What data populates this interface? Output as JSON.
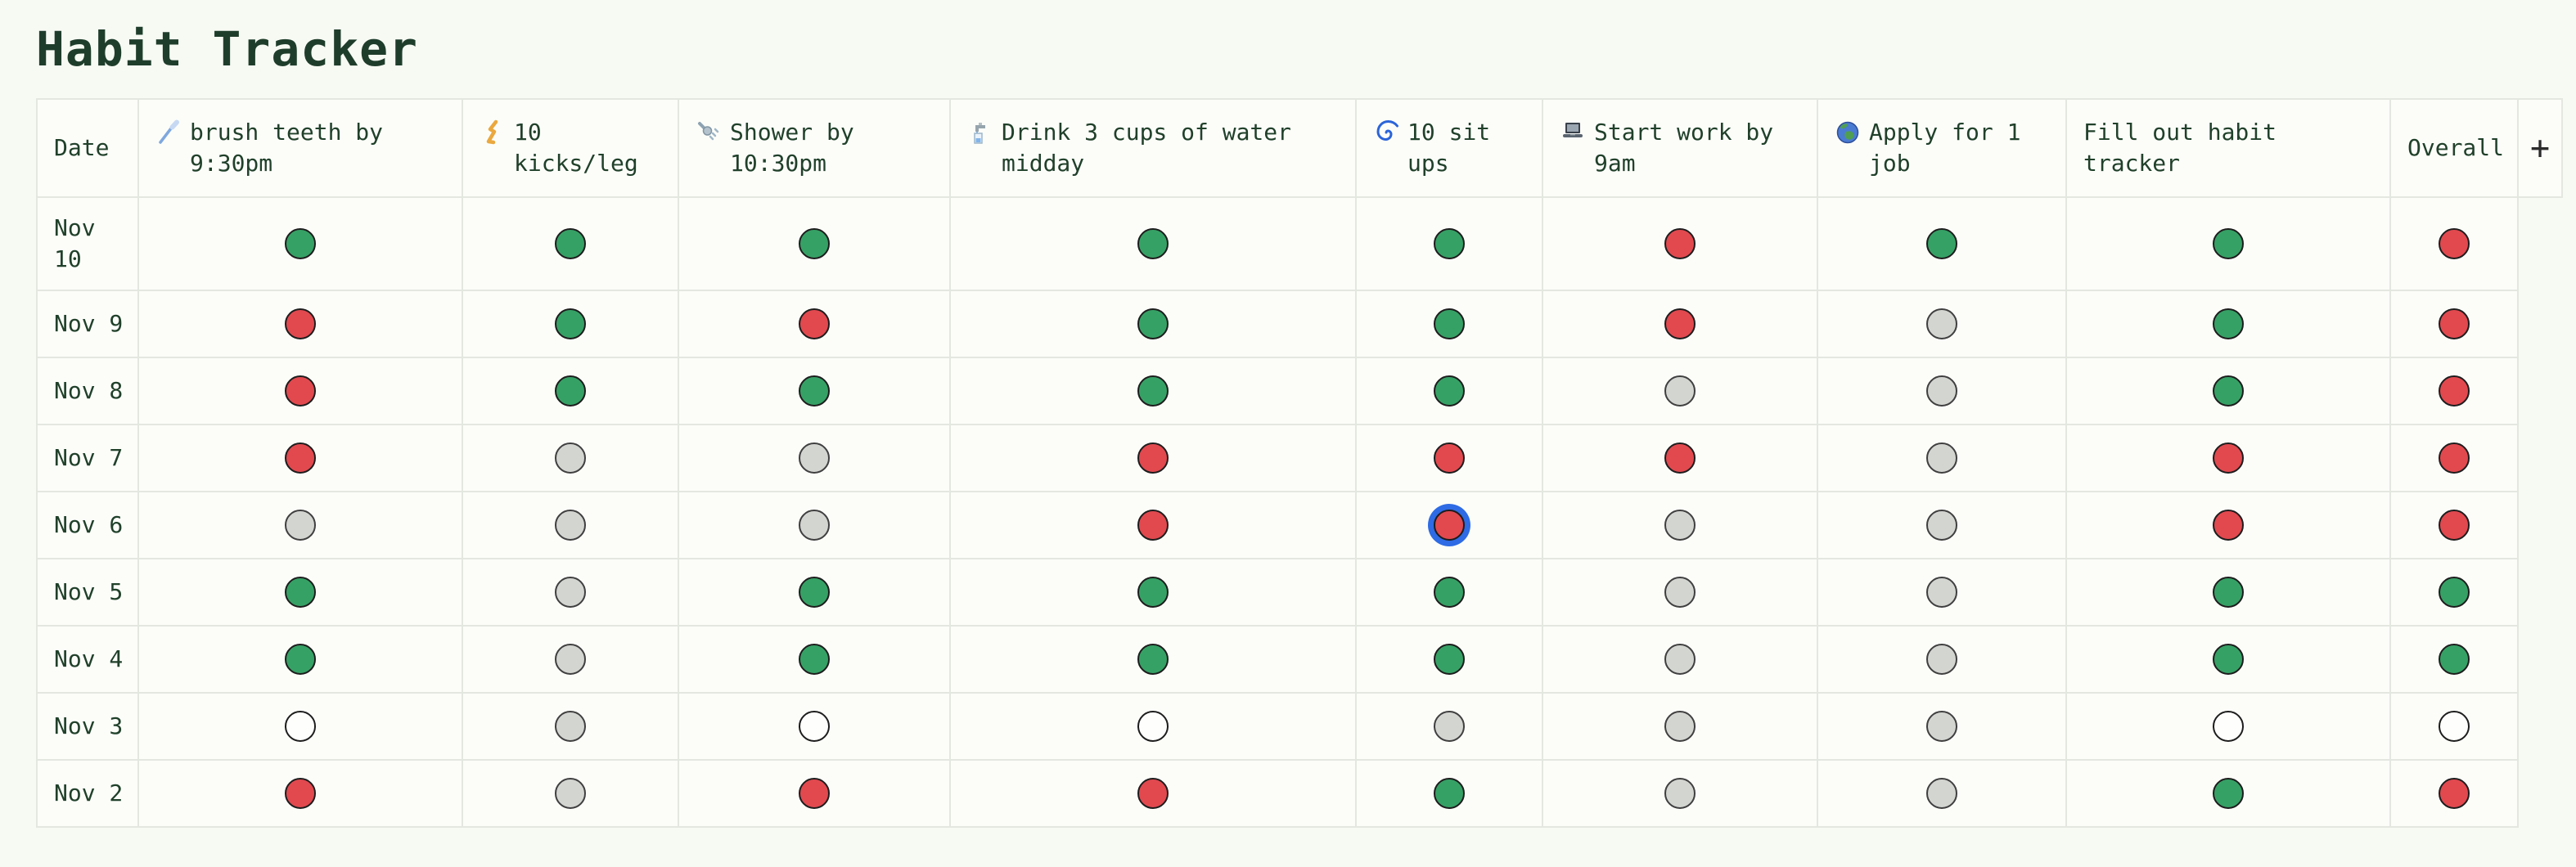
{
  "page": {
    "title": "Habit Tracker"
  },
  "theme": {
    "background": "#f7faf3",
    "cell_background": "#fcfdf9",
    "grid_line": "#e4e7e0",
    "text_color": "#20402a",
    "status_colors": {
      "green": "#36a165",
      "red": "#e1494f",
      "gray": "#d3d5d1",
      "empty": "#fefefc"
    },
    "focus_ring": "#2e6be4"
  },
  "table": {
    "columns": [
      {
        "key": "date",
        "label": "Date",
        "icon": null
      },
      {
        "key": "brush-teeth",
        "label": "brush teeth by 9:30pm",
        "icon": "toothbrush-icon"
      },
      {
        "key": "kicks",
        "label": "10 kicks/leg",
        "icon": "leg-icon"
      },
      {
        "key": "shower",
        "label": "Shower by 10:30pm",
        "icon": "shower-icon"
      },
      {
        "key": "water",
        "label": "Drink 3 cups of water midday",
        "icon": "faucet-icon"
      },
      {
        "key": "sit-ups",
        "label": "10 sit ups",
        "icon": "spiral-icon"
      },
      {
        "key": "start-work",
        "label": "Start work by 9am",
        "icon": "laptop-icon"
      },
      {
        "key": "apply-job",
        "label": "Apply for 1 job",
        "icon": "globe-icon"
      },
      {
        "key": "fill-tracker",
        "label": "Fill out habit tracker",
        "icon": null
      },
      {
        "key": "overall",
        "label": "Overall",
        "icon": null
      }
    ],
    "add_column_button": "+",
    "rows": [
      {
        "date": "Nov 10",
        "statuses": [
          "green",
          "green",
          "green",
          "green",
          "green",
          "red",
          "green",
          "green",
          "red"
        ]
      },
      {
        "date": "Nov 9",
        "statuses": [
          "red",
          "green",
          "red",
          "green",
          "green",
          "red",
          "gray",
          "green",
          "red"
        ]
      },
      {
        "date": "Nov 8",
        "statuses": [
          "red",
          "green",
          "green",
          "green",
          "green",
          "gray",
          "gray",
          "green",
          "red"
        ]
      },
      {
        "date": "Nov 7",
        "statuses": [
          "red",
          "gray",
          "gray",
          "red",
          "red",
          "red",
          "gray",
          "red",
          "red"
        ]
      },
      {
        "date": "Nov 6",
        "statuses": [
          "gray",
          "gray",
          "gray",
          "red",
          "red",
          "gray",
          "gray",
          "red",
          "red"
        ]
      },
      {
        "date": "Nov 5",
        "statuses": [
          "green",
          "gray",
          "green",
          "green",
          "green",
          "gray",
          "gray",
          "green",
          "green"
        ]
      },
      {
        "date": "Nov 4",
        "statuses": [
          "green",
          "gray",
          "green",
          "green",
          "green",
          "gray",
          "gray",
          "green",
          "green"
        ]
      },
      {
        "date": "Nov 3",
        "statuses": [
          "empty",
          "gray",
          "empty",
          "empty",
          "gray",
          "gray",
          "gray",
          "empty",
          "empty"
        ]
      },
      {
        "date": "Nov 2",
        "statuses": [
          "red",
          "gray",
          "red",
          "red",
          "green",
          "gray",
          "gray",
          "green",
          "red"
        ]
      }
    ],
    "focused_cell": {
      "row_date": "Nov 6",
      "column_label": "10 sit ups",
      "row_index": 4,
      "status_index": 4
    }
  }
}
